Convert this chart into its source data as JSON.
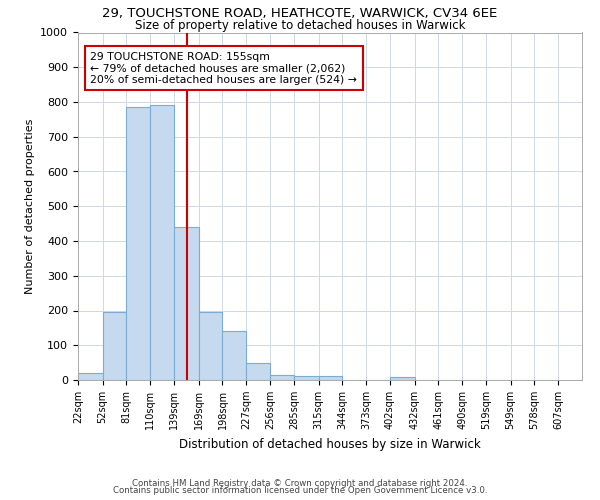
{
  "title1": "29, TOUCHSTONE ROAD, HEATHCOTE, WARWICK, CV34 6EE",
  "title2": "Size of property relative to detached houses in Warwick",
  "xlabel": "Distribution of detached houses by size in Warwick",
  "ylabel": "Number of detached properties",
  "footer1": "Contains HM Land Registry data © Crown copyright and database right 2024.",
  "footer2": "Contains public sector information licensed under the Open Government Licence v3.0.",
  "annotation_line1": "29 TOUCHSTONE ROAD: 155sqm",
  "annotation_line2": "← 79% of detached houses are smaller (2,062)",
  "annotation_line3": "20% of semi-detached houses are larger (524) →",
  "bar_values": [
    20,
    195,
    785,
    790,
    440,
    195,
    140,
    50,
    15,
    12,
    12,
    0,
    0,
    10,
    0,
    0,
    0,
    0,
    0,
    0
  ],
  "bin_labels": [
    "22sqm",
    "52sqm",
    "81sqm",
    "110sqm",
    "139sqm",
    "169sqm",
    "198sqm",
    "227sqm",
    "256sqm",
    "285sqm",
    "315sqm",
    "344sqm",
    "373sqm",
    "402sqm",
    "432sqm",
    "461sqm",
    "490sqm",
    "519sqm",
    "549sqm",
    "578sqm",
    "607sqm"
  ],
  "bin_edges": [
    22,
    52,
    81,
    110,
    139,
    169,
    198,
    227,
    256,
    285,
    315,
    344,
    373,
    402,
    432,
    461,
    490,
    519,
    549,
    578,
    607
  ],
  "bar_color": "#c5d9ef",
  "bar_edge_color": "#7badd4",
  "vline_color": "#cc0000",
  "vline_x": 155,
  "annotation_box_color": "#cc0000",
  "grid_color": "#d0d8e8",
  "background_color": "#ffffff",
  "ylim": [
    0,
    1000
  ],
  "yticks": [
    0,
    100,
    200,
    300,
    400,
    500,
    600,
    700,
    800,
    900,
    1000
  ]
}
